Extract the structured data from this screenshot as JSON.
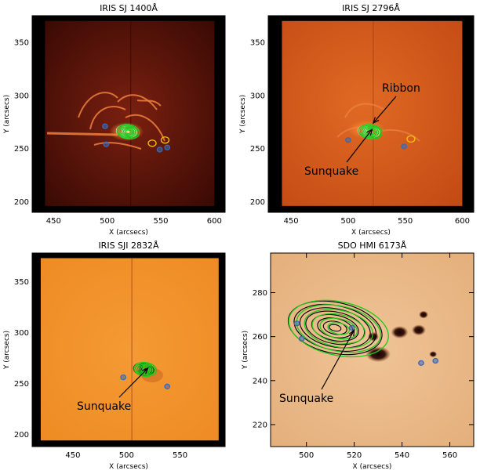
{
  "colors": {
    "background": "#ffffff",
    "frame": "#000000",
    "contour_green": "#22c81e",
    "contour_light_green": "#8ee88a",
    "contour_white": "#f2f2f2",
    "contour_black": "#000000",
    "contour_yellow": "#f5c400",
    "contour_blue": "#3a6ab4",
    "panel_1400": "#5a1408",
    "panel_2796": "#d0541a",
    "panel_2832": "#f2922a",
    "panel_hmi": "#e8b988",
    "sunspot": "#2a0f08",
    "ribbon": "#f08040"
  },
  "annotations": {
    "ribbon": "Ribbon",
    "sunquake_2796": "Sunquake",
    "sunquake_2832": "Sunquake",
    "sunquake_hmi": "Sunquake"
  },
  "chart_data": [
    {
      "type": "heatmap",
      "title": "IRIS SJ 1400Å",
      "xlabel": "X (arcsecs)",
      "ylabel": "Y (arcsecs)",
      "xlim": [
        430,
        610
      ],
      "ylim": [
        190,
        375
      ],
      "xticks": [
        450,
        500,
        550,
        600
      ],
      "yticks": [
        200,
        250,
        300,
        350
      ],
      "map_extent": {
        "x": [
          442,
          600
        ],
        "y": [
          196,
          370
        ]
      },
      "colormap": "IRIS 1400 (dark red to orange)",
      "contours": [
        {
          "name": "",
          "color": "white",
          "center": [
            518,
            266
          ],
          "levels": 5
        },
        {
          "name": "",
          "color": "green",
          "center": [
            518,
            266
          ],
          "levels": 6
        },
        {
          "name": "",
          "color": "yellow",
          "points": [
            [
              542,
              255
            ],
            [
              554,
              258
            ]
          ]
        },
        {
          "name": "",
          "color": "blue",
          "points": [
            [
              498,
              271
            ],
            [
              499,
              254
            ],
            [
              549,
              249
            ],
            [
              556,
              251
            ]
          ]
        }
      ],
      "annotations": []
    },
    {
      "type": "heatmap",
      "title": "IRIS SJ 2796Å",
      "xlabel": "X (arcsecs)",
      "ylabel": "Y (arcsecs)",
      "xlim": [
        430,
        610
      ],
      "ylim": [
        190,
        375
      ],
      "xticks": [
        450,
        500,
        550,
        600
      ],
      "yticks": [
        200,
        250,
        300,
        350
      ],
      "map_extent": {
        "x": [
          442,
          600
        ],
        "y": [
          196,
          370
        ]
      },
      "colormap": "IRIS 2796 (orange-red)",
      "contours": [
        {
          "name": "",
          "color": "white",
          "center": [
            518,
            266
          ],
          "levels": 5
        },
        {
          "name": "",
          "color": "green",
          "center": [
            518,
            266
          ],
          "levels": 6
        },
        {
          "name": "",
          "color": "yellow",
          "points": [
            [
              555,
              259
            ]
          ]
        },
        {
          "name": "",
          "color": "blue",
          "points": [
            [
              500,
              258
            ],
            [
              549,
              252
            ]
          ]
        }
      ],
      "annotations": [
        {
          "text": "Ribbon",
          "arrow_to": [
            522,
            274
          ]
        },
        {
          "text": "Sunquake",
          "arrow_to": [
            521,
            268
          ]
        }
      ]
    },
    {
      "type": "heatmap",
      "title": "IRIS SJI 2832Å",
      "xlabel": "X (arcsecs)",
      "ylabel": "Y (arcsecs)",
      "xlim": [
        412,
        592
      ],
      "ylim": [
        188,
        378
      ],
      "xticks": [
        450,
        500,
        550
      ],
      "yticks": [
        200,
        250,
        300,
        350
      ],
      "map_extent": {
        "x": [
          420,
          586
        ],
        "y": [
          194,
          373
        ]
      },
      "colormap": "IRIS 2832 (orange)",
      "contours": [
        {
          "name": "",
          "color": "black",
          "center": [
            516,
            264
          ],
          "levels": 5
        },
        {
          "name": "",
          "color": "green",
          "center": [
            516,
            264
          ],
          "levels": 6
        },
        {
          "name": "",
          "color": "blue",
          "points": [
            [
              497,
              256
            ],
            [
              538,
              247
            ]
          ]
        }
      ],
      "annotations": [
        {
          "text": "Sunquake",
          "arrow_to": [
            520,
            265
          ]
        }
      ]
    },
    {
      "type": "heatmap",
      "title": "SDO HMI 6173Å",
      "xlabel": "X (arcsecs)",
      "ylabel": "Y (arcsecs)",
      "xlim": [
        485,
        570
      ],
      "ylim": [
        210,
        298
      ],
      "xticks": [
        500,
        520,
        540,
        560
      ],
      "yticks": [
        220,
        240,
        260,
        280
      ],
      "colormap": "HMI continuum (light orange, dark sunspots)",
      "contours": [
        {
          "name": "",
          "color": "black",
          "center": [
            512,
            264
          ],
          "levels": 8
        },
        {
          "name": "",
          "color": "green",
          "center": [
            512,
            264
          ],
          "levels": 6
        },
        {
          "name": "",
          "color": "blue",
          "points": [
            [
              496,
              266
            ],
            [
              498,
              259
            ],
            [
              519,
              264
            ],
            [
              548,
              248
            ],
            [
              554,
              249
            ]
          ]
        }
      ],
      "annotations": [
        {
          "text": "Sunquake",
          "arrow_to": [
            520,
            263
          ]
        }
      ]
    }
  ]
}
